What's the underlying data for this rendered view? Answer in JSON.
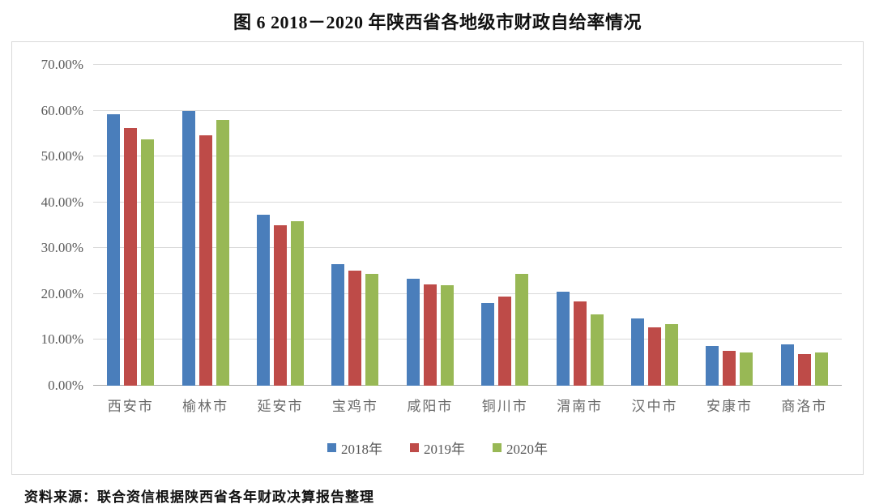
{
  "title": "图 6  2018－2020 年陕西省各地级市财政自给率情况",
  "source": "资料来源：联合资信根据陕西省各年财政决算报告整理",
  "colors": {
    "series_2018": "#4A7EBB",
    "series_2019": "#BE4B48",
    "series_2020": "#98B855",
    "gridline": "#D9D9D9",
    "baseline": "#A6A6A6",
    "box_border": "#D9D9D9",
    "axis_text": "#595959"
  },
  "chart_data": {
    "type": "bar",
    "title": "图 6  2018－2020 年陕西省各地级市财政自给率情况",
    "categories": [
      "西安市",
      "榆林市",
      "延安市",
      "宝鸡市",
      "咸阳市",
      "铜川市",
      "渭南市",
      "汉中市",
      "安康市",
      "商洛市"
    ],
    "series": [
      {
        "name": "2018年",
        "color": "#4A7EBB",
        "values": [
          59.3,
          60.0,
          37.3,
          26.5,
          23.3,
          18.1,
          20.5,
          14.6,
          8.7,
          9.1
        ]
      },
      {
        "name": "2019年",
        "color": "#BE4B48",
        "values": [
          56.2,
          54.6,
          35.0,
          25.1,
          22.1,
          19.5,
          18.3,
          12.8,
          7.6,
          6.9
        ]
      },
      {
        "name": "2020年",
        "color": "#98B855",
        "values": [
          53.7,
          57.9,
          35.8,
          24.4,
          21.9,
          24.4,
          15.6,
          13.4,
          7.2,
          7.2
        ]
      }
    ],
    "xlabel": "",
    "ylabel": "",
    "ylim": [
      0,
      70
    ],
    "ytick_step": 10,
    "yticks": [
      "0.00%",
      "10.00%",
      "20.00%",
      "30.00%",
      "40.00%",
      "50.00%",
      "60.00%",
      "70.00%"
    ],
    "grid": true,
    "legend_position": "bottom",
    "unit": "percent"
  }
}
